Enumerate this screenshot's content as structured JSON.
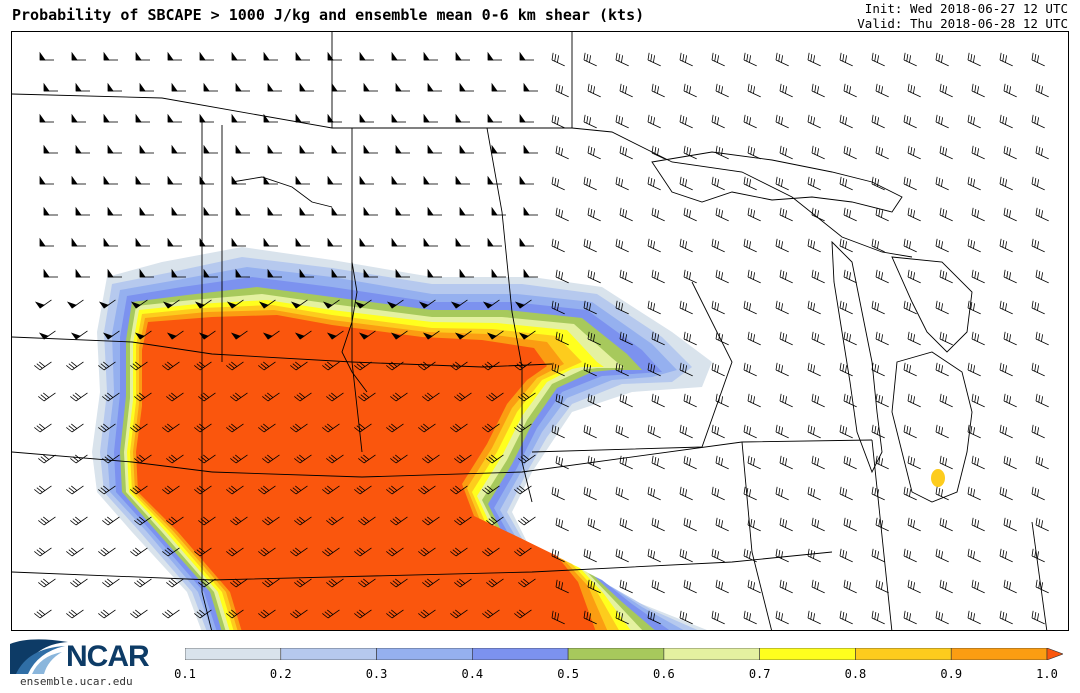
{
  "header": {
    "title": "Probability of SBCAPE > 1000 J/kg and ensemble mean 0-6 km shear (kts)",
    "init": "Init: Wed 2018-06-27 12 UTC",
    "valid": "Valid: Thu 2018-06-28 12 UTC"
  },
  "logo": {
    "name": "NCAR",
    "url": "ensemble.ucar.edu"
  },
  "colorbar": {
    "ticks": [
      "0.1",
      "0.2",
      "0.3",
      "0.4",
      "0.5",
      "0.6",
      "0.7",
      "0.8",
      "0.9",
      "1.0"
    ],
    "colors": [
      "#d9e3ec",
      "#b6c9ee",
      "#95b0ef",
      "#7c92ef",
      "#a7c95c",
      "#e4f1a0",
      "#ffff1e",
      "#fdcc1d",
      "#fb9d12",
      "#fa560d"
    ]
  },
  "map": {
    "region": "Northern and central United States",
    "field": "probability",
    "overlay": "wind barbs",
    "colors": {
      "boundary": "#000000",
      "max_probability": "#fa560d"
    }
  }
}
